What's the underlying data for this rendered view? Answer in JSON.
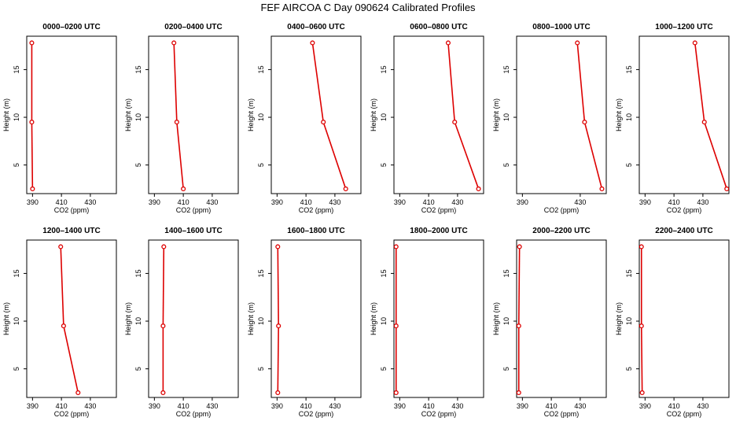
{
  "figure": {
    "title": "FEF AIRCOA C  Day 090624  Calibrated Profiles"
  },
  "style": {
    "series_color": "#dd0000",
    "axis_color": "#000000",
    "background": "#ffffff"
  },
  "chart_data": [
    {
      "type": "line",
      "title": "0000–0200 UTC",
      "xlabel": "CO2 (ppm)",
      "ylabel": "Height (m)",
      "xlim": [
        386,
        448
      ],
      "ylim": [
        2,
        18.5
      ],
      "xticks": [
        390,
        410,
        430
      ],
      "yticks": [
        5,
        10,
        15
      ],
      "x": [
        389.5,
        389.5,
        390.0
      ],
      "y": [
        17.8,
        9.5,
        2.5
      ]
    },
    {
      "type": "line",
      "title": "0200–0400 UTC",
      "xlabel": "CO2 (ppm)",
      "ylabel": "Height (m)",
      "xlim": [
        386,
        448
      ],
      "ylim": [
        2,
        18.5
      ],
      "xticks": [
        390,
        410,
        430
      ],
      "yticks": [
        5,
        10,
        15
      ],
      "x": [
        403.5,
        405.5,
        410.0
      ],
      "y": [
        17.8,
        9.5,
        2.5
      ]
    },
    {
      "type": "line",
      "title": "0400–0600 UTC",
      "xlabel": "CO2 (ppm)",
      "ylabel": "Height (m)",
      "xlim": [
        386,
        448
      ],
      "ylim": [
        2,
        18.5
      ],
      "xticks": [
        390,
        410,
        430
      ],
      "yticks": [
        5,
        10,
        15
      ],
      "x": [
        414.5,
        422.0,
        437.5
      ],
      "y": [
        17.8,
        9.5,
        2.5
      ]
    },
    {
      "type": "line",
      "title": "0600–0800 UTC",
      "xlabel": "CO2 (ppm)",
      "ylabel": "Height (m)",
      "xlim": [
        386,
        448
      ],
      "ylim": [
        2,
        18.5
      ],
      "xticks": [
        390,
        410,
        430
      ],
      "yticks": [
        5,
        10,
        15
      ],
      "x": [
        423.5,
        428.0,
        444.5
      ],
      "y": [
        17.8,
        9.5,
        2.5
      ]
    },
    {
      "type": "line",
      "title": "0800–1000 UTC",
      "xlabel": "CO2 (ppm)",
      "ylabel": "Height (m)",
      "xlim": [
        386,
        448
      ],
      "ylim": [
        2,
        18.5
      ],
      "xticks": [
        390,
        430
      ],
      "yticks": [
        5,
        10,
        15
      ],
      "x": [
        428.0,
        433.0,
        445.0
      ],
      "y": [
        17.8,
        9.5,
        2.5
      ]
    },
    {
      "type": "line",
      "title": "1000–1200 UTC",
      "xlabel": "CO2 (ppm)",
      "ylabel": "Height (m)",
      "xlim": [
        386,
        448
      ],
      "ylim": [
        2,
        18.5
      ],
      "xticks": [
        390,
        410,
        430
      ],
      "yticks": [
        5,
        10,
        15
      ],
      "x": [
        424.5,
        431.0,
        446.5
      ],
      "y": [
        17.8,
        9.5,
        2.5
      ]
    },
    {
      "type": "line",
      "title": "1200–1400 UTC",
      "xlabel": "CO2 (ppm)",
      "ylabel": "Height (m)",
      "xlim": [
        386,
        448
      ],
      "ylim": [
        2,
        18.5
      ],
      "xticks": [
        390,
        410,
        430
      ],
      "yticks": [
        5,
        10,
        15
      ],
      "x": [
        409.5,
        411.5,
        421.5
      ],
      "y": [
        17.8,
        9.5,
        2.5
      ]
    },
    {
      "type": "line",
      "title": "1400–1600 UTC",
      "xlabel": "CO2 (ppm)",
      "ylabel": "Height (m)",
      "xlim": [
        386,
        448
      ],
      "ylim": [
        2,
        18.5
      ],
      "xticks": [
        390,
        410,
        430
      ],
      "yticks": [
        5,
        10,
        15
      ],
      "x": [
        396.5,
        396.0,
        396.0
      ],
      "y": [
        17.8,
        9.5,
        2.5
      ]
    },
    {
      "type": "line",
      "title": "1600–1800 UTC",
      "xlabel": "CO2 (ppm)",
      "ylabel": "Height (m)",
      "xlim": [
        386,
        448
      ],
      "ylim": [
        2,
        18.5
      ],
      "xticks": [
        390,
        410,
        430
      ],
      "yticks": [
        5,
        10,
        15
      ],
      "x": [
        390.5,
        391.0,
        390.5
      ],
      "y": [
        17.8,
        9.5,
        2.5
      ]
    },
    {
      "type": "line",
      "title": "1800–2000 UTC",
      "xlabel": "CO2 (ppm)",
      "ylabel": "Height (m)",
      "xlim": [
        386,
        448
      ],
      "ylim": [
        2,
        18.5
      ],
      "xticks": [
        390,
        410,
        430
      ],
      "yticks": [
        5,
        10,
        15
      ],
      "x": [
        387.5,
        387.5,
        387.5
      ],
      "y": [
        17.8,
        9.5,
        2.5
      ]
    },
    {
      "type": "line",
      "title": "2000–2200 UTC",
      "xlabel": "CO2 (ppm)",
      "ylabel": "Height (m)",
      "xlim": [
        386,
        448
      ],
      "ylim": [
        2,
        18.5
      ],
      "xticks": [
        390,
        410,
        430
      ],
      "yticks": [
        5,
        10,
        15
      ],
      "x": [
        388.0,
        387.5,
        387.5
      ],
      "y": [
        17.8,
        9.5,
        2.5
      ]
    },
    {
      "type": "line",
      "title": "2200–2400 UTC",
      "xlabel": "CO2 (ppm)",
      "ylabel": "Height (m)",
      "xlim": [
        386,
        448
      ],
      "ylim": [
        2,
        18.5
      ],
      "xticks": [
        390,
        410,
        430
      ],
      "yticks": [
        5,
        10,
        15
      ],
      "x": [
        387.5,
        387.5,
        388.0
      ],
      "y": [
        17.8,
        9.5,
        2.5
      ]
    }
  ]
}
